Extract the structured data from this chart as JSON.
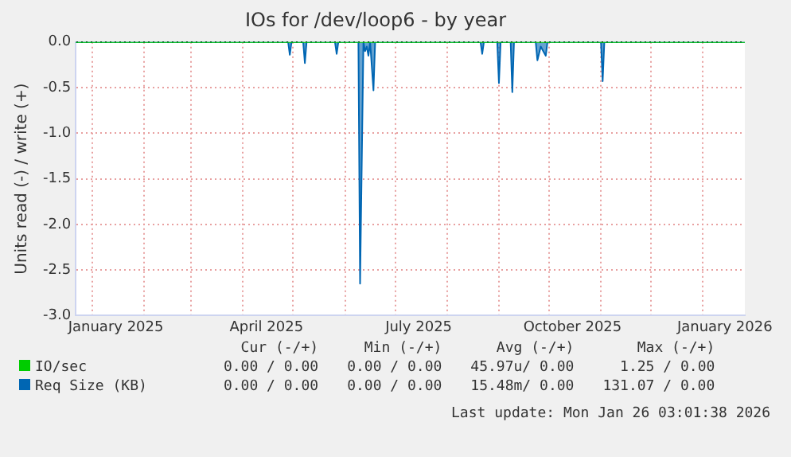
{
  "chart_data": {
    "type": "area",
    "title": "IOs for /dev/loop6 - by year",
    "ylabel": "Units read (-) / write (+)",
    "xlim": [
      "2024-12-22",
      "2026-01-26"
    ],
    "xticks": [
      {
        "value": "2025-01-01",
        "label": null
      },
      {
        "value": "2025-01-15",
        "label": "January 2025"
      },
      {
        "value": "2025-02-01",
        "label": null
      },
      {
        "value": "2025-03-01",
        "label": null
      },
      {
        "value": "2025-04-01",
        "label": null
      },
      {
        "value": "2025-04-15",
        "label": "April 2025"
      },
      {
        "value": "2025-05-01",
        "label": null
      },
      {
        "value": "2025-06-01",
        "label": null
      },
      {
        "value": "2025-07-01",
        "label": null
      },
      {
        "value": "2025-07-15",
        "label": "July 2025"
      },
      {
        "value": "2025-08-01",
        "label": null
      },
      {
        "value": "2025-09-01",
        "label": null
      },
      {
        "value": "2025-10-01",
        "label": null
      },
      {
        "value": "2025-10-15",
        "label": "October 2025"
      },
      {
        "value": "2025-11-01",
        "label": null
      },
      {
        "value": "2025-12-01",
        "label": null
      },
      {
        "value": "2026-01-01",
        "label": null
      },
      {
        "value": "2026-01-14",
        "label": "January 2026"
      }
    ],
    "ylim": [
      -3,
      0
    ],
    "yticks": [
      {
        "value": -3,
        "label": "-3.0"
      },
      {
        "value": -2.5,
        "label": "-2.5"
      },
      {
        "value": -2,
        "label": "-2.0"
      },
      {
        "value": -1.5,
        "label": "-1.5"
      },
      {
        "value": -1,
        "label": "-1.0"
      },
      {
        "value": -0.5,
        "label": "-0.5"
      },
      {
        "value": 0,
        "label": "0.0"
      }
    ],
    "grid": true,
    "legend": "bottom",
    "series": [
      {
        "name": "IO/sec",
        "type": "line",
        "color": "#00cc00",
        "x": [
          "2024-12-22",
          "2026-01-26"
        ],
        "values": [
          0,
          0
        ]
      },
      {
        "name": "Req Size (KB)",
        "color": "#0066b3",
        "x": [
          "2024-12-22",
          "2025-04-28",
          "2025-04-29",
          "2025-04-30",
          "2025-05-07",
          "2025-05-08",
          "2025-05-09",
          "2025-05-26",
          "2025-05-27",
          "2025-05-28",
          "2025-06-09",
          "2025-06-10",
          "2025-06-12",
          "2025-06-13",
          "2025-06-14",
          "2025-06-15",
          "2025-06-16",
          "2025-06-18",
          "2025-06-19",
          "2025-08-21",
          "2025-08-22",
          "2025-08-23",
          "2025-08-31",
          "2025-09-01",
          "2025-09-02",
          "2025-09-08",
          "2025-09-09",
          "2025-09-10",
          "2025-09-23",
          "2025-09-24",
          "2025-09-26",
          "2025-09-29",
          "2025-09-30",
          "2025-11-01",
          "2025-11-02",
          "2025-11-03",
          "2026-01-26"
        ],
        "values": [
          0,
          0,
          -0.14,
          0,
          0,
          -0.23,
          0,
          0,
          -0.13,
          0,
          0,
          -2.65,
          0,
          -0.1,
          -0.05,
          -0.15,
          0,
          -0.53,
          0,
          0,
          -0.13,
          0,
          0,
          -0.45,
          0,
          0,
          -0.55,
          0,
          0,
          -0.2,
          -0.05,
          -0.15,
          0,
          0,
          -0.43,
          0,
          0
        ]
      }
    ],
    "annotations": [
      "Cur (-/+)",
      "Min (-/+)",
      "Avg (-/+)",
      "Max (-/+)",
      "0.00 / 0.00",
      "0.00 / 0.00",
      "45.97u/ 0.00",
      "1.25 / 0.00",
      "0.00 / 0.00",
      "0.00 / 0.00",
      "15.48m/ 0.00",
      "131.07 / 0.00",
      "Last update: Mon Jan 26 03:01:38 2026"
    ]
  }
}
